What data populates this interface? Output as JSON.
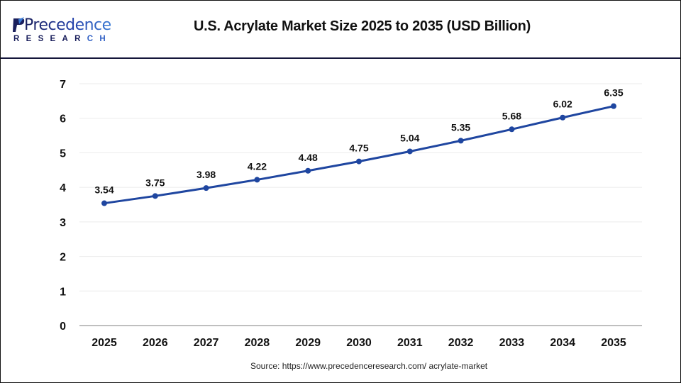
{
  "header": {
    "logo": {
      "word": "Precedence",
      "sub": "RESEARCH",
      "icon": "precedence-logo-mark-icon"
    },
    "title": "U.S. Acrylate Market Size 2025 to 2035  (USD Billion)"
  },
  "footer": {
    "source": "Source: https://www.precedenceresearch.com/ acrylate-market"
  },
  "colors": {
    "line": "#1f46a0",
    "grid": "#ebebeb",
    "axis": "#bfbfbf",
    "header_rule": "#14163a",
    "text": "#111111"
  },
  "chart_data": {
    "type": "line",
    "title": "U.S. Acrylate Market Size 2025 to 2035 (USD Billion)",
    "xlabel": "",
    "ylabel": "",
    "categories": [
      "2025",
      "2026",
      "2027",
      "2028",
      "2029",
      "2030",
      "2031",
      "2032",
      "2033",
      "2034",
      "2035"
    ],
    "series": [
      {
        "name": "U.S. Acrylate Market Size (USD Billion)",
        "values": [
          3.54,
          3.75,
          3.98,
          4.22,
          4.48,
          4.75,
          5.04,
          5.35,
          5.68,
          6.02,
          6.35
        ],
        "labels": [
          "3.54",
          "3.75",
          "3.98",
          "4.22",
          "4.48",
          "4.75",
          "5.04",
          "5.35",
          "5.68",
          "6.02",
          "6.35"
        ]
      }
    ],
    "ylim": [
      0,
      7
    ],
    "yticks": [
      "0",
      "1",
      "2",
      "3",
      "4",
      "5",
      "6",
      "7"
    ],
    "grid": true,
    "legend": "none",
    "markers": true,
    "data_labels": true
  }
}
